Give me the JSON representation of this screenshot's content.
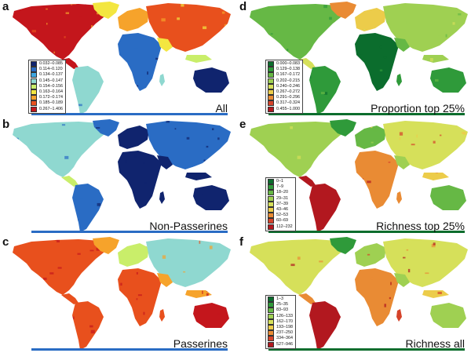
{
  "panels": [
    {
      "letter": "a",
      "title": "All",
      "colors": [
        "#10246e",
        "#2a6cc4",
        "#3fa6e0",
        "#8fd8d0",
        "#c9ee6a",
        "#f3e640",
        "#f6a32b",
        "#e8501d",
        "#c4161c"
      ],
      "legend": [
        "0.032–0.085",
        "0.114–0.120",
        "0.134–0.137",
        "0.145–0.147",
        "0.154–0.156",
        "0.163–0.164",
        "0.172–0.174",
        "0.185–0.189",
        "0.267–1.406"
      ]
    },
    {
      "letter": "d",
      "title": "Proportion top 25%",
      "colors": [
        "#0b6d2d",
        "#2f9a3a",
        "#66b845",
        "#9fd052",
        "#d6e05a",
        "#eccc4a",
        "#e98b34",
        "#d5432a",
        "#b2181f"
      ],
      "legend": [
        "0.000–0.083",
        "0.129–0.138",
        "0.167–0.172",
        "0.202–0.215",
        "0.240–0.246",
        "0.267–0.272",
        "0.291–0.296",
        "0.317–0.324",
        "0.455–1.000"
      ]
    },
    {
      "letter": "b",
      "title": "Non-Passerines",
      "colors": [
        "#10246e",
        "#2a6cc4",
        "#3fa6e0",
        "#8fd8d0",
        "#c9ee6a",
        "#f3e640",
        "#f6a32b",
        "#e8501d",
        "#c4161c"
      ],
      "legend": []
    },
    {
      "letter": "e",
      "title": "Richness top 25%",
      "colors": [
        "#0b6d2d",
        "#2f9a3a",
        "#66b845",
        "#9fd052",
        "#d6e05a",
        "#eccc4a",
        "#e98b34",
        "#d5432a",
        "#b2181f"
      ],
      "legend": [
        "0–1",
        "7–9",
        "18–20",
        "29–31",
        "37–39",
        "43–46",
        "52–53",
        "60–69",
        "112–232"
      ]
    },
    {
      "letter": "c",
      "title": "Passerines",
      "colors": [
        "#10246e",
        "#2a6cc4",
        "#3fa6e0",
        "#8fd8d0",
        "#c9ee6a",
        "#f3e640",
        "#f6a32b",
        "#e8501d",
        "#c4161c"
      ],
      "legend": []
    },
    {
      "letter": "f",
      "title": "Richness all",
      "colors": [
        "#0b6d2d",
        "#2f9a3a",
        "#66b845",
        "#9fd052",
        "#d6e05a",
        "#eccc4a",
        "#e98b34",
        "#d5432a",
        "#b2181f"
      ],
      "legend": [
        "1–3",
        "25–35",
        "83–93",
        "126–133",
        "162–170",
        "193–198",
        "237–250",
        "334–364",
        "527–946"
      ]
    }
  ]
}
